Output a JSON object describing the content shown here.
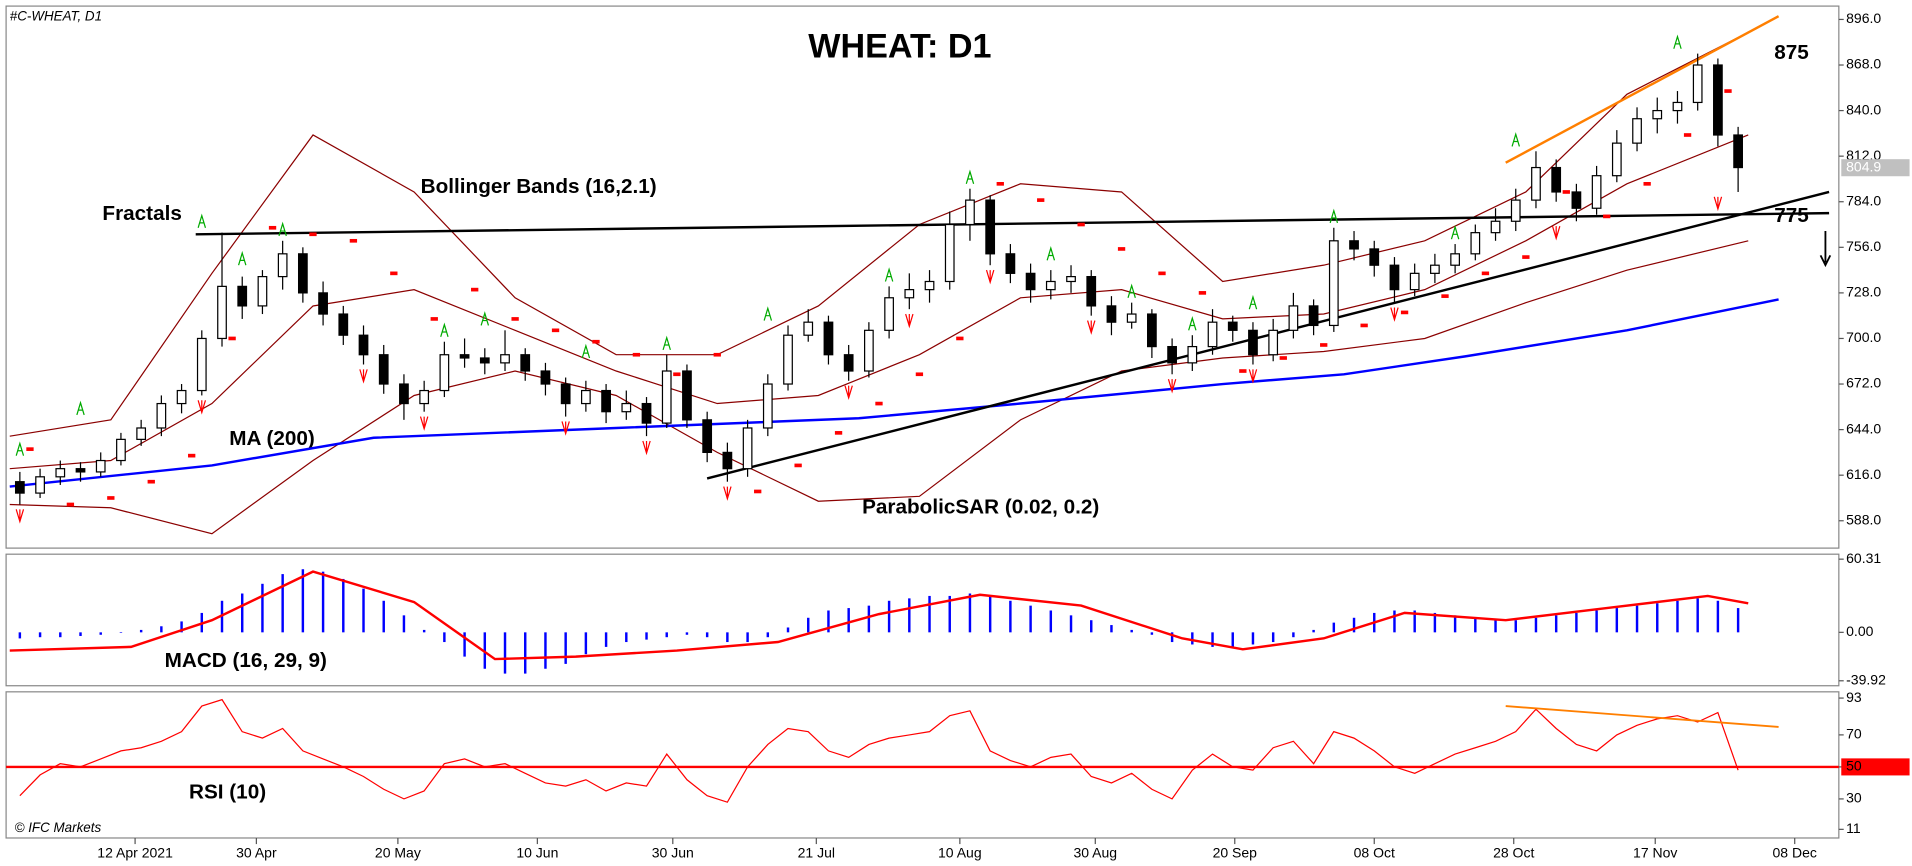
{
  "chart_data": {
    "type": "candlestick",
    "title": "WHEAT: D1",
    "symbol": "#C-WHEAT, D1",
    "watermark": "© IFC Markets",
    "xlim": [
      0,
      90
    ],
    "xticks": [
      {
        "value": 6.2,
        "label": "12 Apr 2021"
      },
      {
        "value": 12.2,
        "label": "30 Apr"
      },
      {
        "value": 19.2,
        "label": "20 May"
      },
      {
        "value": 26.1,
        "label": "10 Jun"
      },
      {
        "value": 32.8,
        "label": "30 Jun"
      },
      {
        "value": 39.9,
        "label": "21 Jul"
      },
      {
        "value": 47.0,
        "label": "10 Aug"
      },
      {
        "value": 53.7,
        "label": "30 Aug"
      },
      {
        "value": 60.6,
        "label": "20 Sep"
      },
      {
        "value": 67.5,
        "label": "08 Oct"
      },
      {
        "value": 74.4,
        "label": "28 Oct"
      },
      {
        "value": 81.4,
        "label": "17 Nov"
      },
      {
        "value": 88.3,
        "label": "08 Dec"
      }
    ],
    "ylim": [
      571.2,
      904.2
    ],
    "yticks": [
      {
        "value": 588,
        "label": "588.0"
      },
      {
        "value": 616,
        "label": "616.0"
      },
      {
        "value": 644,
        "label": "644.0"
      },
      {
        "value": 672,
        "label": "672.0"
      },
      {
        "value": 700,
        "label": "700.0"
      },
      {
        "value": 728,
        "label": "728.0"
      },
      {
        "value": 756,
        "label": "756.0"
      },
      {
        "value": 784,
        "label": "784.0"
      },
      {
        "value": 812,
        "label": "812.0"
      },
      {
        "value": 840,
        "label": "840.0"
      },
      {
        "value": 868,
        "label": "868.0"
      },
      {
        "value": 896,
        "label": "896.0"
      }
    ],
    "last_price": 804.9,
    "up_color": "#ffffff",
    "down_color": "#000000",
    "candles": [
      [
        612,
        618,
        598,
        605
      ],
      [
        605,
        620,
        602,
        615
      ],
      [
        615,
        625,
        610,
        620
      ],
      [
        620,
        624,
        612,
        618
      ],
      [
        618,
        630,
        615,
        625
      ],
      [
        625,
        642,
        622,
        638
      ],
      [
        638,
        650,
        634,
        645
      ],
      [
        645,
        665,
        640,
        660
      ],
      [
        660,
        672,
        654,
        668
      ],
      [
        668,
        705,
        665,
        700
      ],
      [
        700,
        765,
        695,
        732
      ],
      [
        732,
        738,
        712,
        720
      ],
      [
        720,
        742,
        715,
        738
      ],
      [
        738,
        760,
        730,
        752
      ],
      [
        752,
        756,
        722,
        728
      ],
      [
        728,
        735,
        708,
        715
      ],
      [
        715,
        720,
        696,
        702
      ],
      [
        702,
        708,
        684,
        690
      ],
      [
        690,
        696,
        666,
        672
      ],
      [
        672,
        678,
        650,
        660
      ],
      [
        660,
        674,
        655,
        668
      ],
      [
        668,
        698,
        664,
        690
      ],
      [
        690,
        700,
        682,
        688
      ],
      [
        688,
        694,
        678,
        685
      ],
      [
        685,
        705,
        680,
        690
      ],
      [
        690,
        694,
        674,
        680
      ],
      [
        680,
        685,
        665,
        672
      ],
      [
        672,
        676,
        652,
        660
      ],
      [
        660,
        674,
        655,
        668
      ],
      [
        668,
        672,
        648,
        655
      ],
      [
        655,
        668,
        650,
        660
      ],
      [
        660,
        664,
        640,
        648
      ],
      [
        648,
        690,
        645,
        680
      ],
      [
        680,
        684,
        645,
        650
      ],
      [
        650,
        655,
        624,
        630
      ],
      [
        630,
        636,
        612,
        620
      ],
      [
        620,
        650,
        615,
        645
      ],
      [
        645,
        678,
        640,
        672
      ],
      [
        672,
        708,
        668,
        702
      ],
      [
        702,
        718,
        698,
        710
      ],
      [
        710,
        714,
        684,
        690
      ],
      [
        690,
        696,
        674,
        680
      ],
      [
        680,
        710,
        676,
        705
      ],
      [
        705,
        732,
        700,
        725
      ],
      [
        725,
        740,
        718,
        730
      ],
      [
        730,
        742,
        722,
        735
      ],
      [
        735,
        778,
        730,
        770
      ],
      [
        770,
        792,
        760,
        785
      ],
      [
        785,
        788,
        745,
        752
      ],
      [
        752,
        758,
        734,
        740
      ],
      [
        740,
        746,
        722,
        730
      ],
      [
        730,
        742,
        724,
        735
      ],
      [
        735,
        745,
        728,
        738
      ],
      [
        738,
        742,
        714,
        720
      ],
      [
        720,
        726,
        702,
        710
      ],
      [
        710,
        722,
        706,
        715
      ],
      [
        715,
        718,
        688,
        695
      ],
      [
        695,
        700,
        678,
        685
      ],
      [
        685,
        702,
        680,
        695
      ],
      [
        695,
        718,
        690,
        710
      ],
      [
        710,
        714,
        698,
        705
      ],
      [
        705,
        710,
        684,
        690
      ],
      [
        690,
        712,
        686,
        705
      ],
      [
        705,
        728,
        700,
        720
      ],
      [
        720,
        724,
        702,
        708
      ],
      [
        708,
        768,
        704,
        760
      ],
      [
        760,
        766,
        748,
        755
      ],
      [
        755,
        760,
        738,
        745
      ],
      [
        745,
        750,
        722,
        730
      ],
      [
        730,
        746,
        726,
        740
      ],
      [
        740,
        752,
        734,
        745
      ],
      [
        745,
        758,
        740,
        752
      ],
      [
        752,
        770,
        748,
        765
      ],
      [
        765,
        780,
        760,
        772
      ],
      [
        772,
        792,
        766,
        785
      ],
      [
        785,
        815,
        780,
        805
      ],
      [
        805,
        810,
        784,
        790
      ],
      [
        790,
        795,
        772,
        780
      ],
      [
        780,
        806,
        776,
        800
      ],
      [
        800,
        828,
        796,
        820
      ],
      [
        820,
        842,
        815,
        835
      ],
      [
        835,
        848,
        826,
        840
      ],
      [
        840,
        852,
        832,
        845
      ],
      [
        845,
        875,
        840,
        868
      ],
      [
        868,
        872,
        818,
        825
      ],
      [
        825,
        830,
        790,
        805
      ]
    ],
    "ma": {
      "label": "MA (200)",
      "color": "#0000ff",
      "x": [
        0,
        10,
        18,
        30,
        42,
        50,
        60,
        66,
        72,
        80,
        87.5
      ],
      "values": [
        609,
        622,
        639,
        645,
        651,
        660,
        672,
        678,
        689,
        705,
        724
      ]
    },
    "bollinger": {
      "label": "Bollinger Bands (16,2.1)",
      "color": "#8b0000",
      "x": [
        0,
        5,
        10,
        15,
        20,
        25,
        30,
        35,
        40,
        45,
        50,
        55,
        60,
        65,
        70,
        75,
        80,
        86
      ],
      "upper": [
        640,
        650,
        740,
        825,
        790,
        725,
        690,
        690,
        720,
        770,
        795,
        790,
        735,
        745,
        760,
        790,
        850,
        888
      ],
      "middle": [
        620,
        625,
        660,
        720,
        730,
        705,
        680,
        660,
        665,
        690,
        725,
        730,
        712,
        715,
        730,
        760,
        795,
        825
      ],
      "lower": [
        598,
        596,
        580,
        625,
        665,
        680,
        665,
        630,
        600,
        603,
        650,
        680,
        688,
        692,
        700,
        722,
        742,
        760
      ]
    },
    "sar": {
      "label": "ParabolicSAR (0.02, 0.2)",
      "color": "#ff0000",
      "x": [
        1,
        3,
        5,
        7,
        9,
        11,
        13,
        15,
        17,
        19,
        21,
        23,
        25,
        27,
        29,
        31,
        33,
        35,
        37,
        39,
        41,
        43,
        45,
        47,
        49,
        51,
        53,
        55,
        57,
        59,
        61,
        63,
        65,
        67,
        69,
        71,
        73,
        75,
        77,
        79,
        81,
        83,
        85
      ],
      "values": [
        632,
        598,
        602,
        612,
        628,
        700,
        768,
        764,
        760,
        740,
        712,
        730,
        712,
        705,
        698,
        690,
        678,
        690,
        606,
        622,
        642,
        660,
        678,
        700,
        795,
        785,
        770,
        755,
        740,
        728,
        680,
        688,
        696,
        708,
        716,
        726,
        740,
        750,
        790,
        775,
        795,
        825,
        852
      ]
    },
    "fractals": {
      "label": "Fractals",
      "up_color": "#00aa00",
      "down_color": "#ff0000",
      "up": {
        "x": [
          0.5,
          3.5,
          9.5,
          11.5,
          13.5,
          21.5,
          23.5,
          28.5,
          32.5,
          37.5,
          43.5,
          47.5,
          51.5,
          55.5,
          58.5,
          61.5,
          65.5,
          71.5,
          74.5,
          82.5
        ],
        "values": [
          625,
          650,
          765,
          742,
          760,
          698,
          705,
          685,
          690,
          708,
          732,
          792,
          745,
          722,
          702,
          715,
          768,
          758,
          815,
          875
        ]
      },
      "down": {
        "x": [
          0.5,
          9.5,
          17.5,
          20.5,
          27.5,
          31.5,
          35.5,
          41.5,
          44.5,
          48.5,
          53.5,
          57.5,
          61.5,
          68.5,
          76.5,
          84.5
        ],
        "values": [
          598,
          665,
          684,
          655,
          652,
          640,
          612,
          674,
          718,
          745,
          714,
          678,
          684,
          722,
          772,
          790
        ]
      }
    },
    "trendlines": [
      {
        "color": "#000000",
        "x": [
          34.5,
          90
        ],
        "values": [
          614,
          790
        ]
      },
      {
        "color": "#000000",
        "x": [
          9.2,
          90
        ],
        "values": [
          764,
          777
        ]
      },
      {
        "color": "#ff7f00",
        "x": [
          74,
          87.5
        ],
        "values": [
          808,
          898
        ]
      }
    ],
    "targets": [
      875,
      775
    ],
    "macd": {
      "label": "MACD (16, 29, 9)",
      "ylim": [
        -44,
        64.4
      ],
      "yticks": [
        60.31,
        {
          "value": 0,
          "label": "0.00"
        },
        -39.92
      ],
      "hist_color": "#0000ff",
      "histogram": [
        -5,
        -4,
        -4,
        -3,
        -2,
        0,
        2,
        5,
        9,
        16,
        26,
        32,
        40,
        48,
        52,
        50,
        44,
        36,
        26,
        14,
        2,
        -8,
        -20,
        -30,
        -34,
        -34,
        -30,
        -26,
        -18,
        -12,
        -8,
        -6,
        -4,
        -2,
        -4,
        -8,
        -8,
        -4,
        4,
        12,
        18,
        20,
        22,
        26,
        28,
        30,
        30,
        32,
        30,
        26,
        22,
        18,
        14,
        10,
        6,
        2,
        -2,
        -8,
        -10,
        -12,
        -12,
        -10,
        -8,
        -4,
        2,
        8,
        12,
        16,
        18,
        18,
        16,
        14,
        12,
        10,
        10,
        12,
        14,
        16,
        18,
        20,
        22,
        24,
        26,
        28,
        26,
        20
      ],
      "signal": {
        "color": "#ff0000",
        "x": [
          0,
          6,
          10,
          15,
          20,
          24,
          28,
          33,
          38,
          43,
          48,
          53,
          58,
          61,
          65,
          69,
          74,
          79,
          84,
          86
        ],
        "values": [
          -15,
          -12,
          10,
          50,
          25,
          -22,
          -20,
          -15,
          -8,
          15,
          31,
          22,
          -5,
          -14,
          -5,
          16,
          10,
          20,
          30,
          24
        ]
      }
    },
    "rsi": {
      "label": "RSI (10)",
      "ylim": [
        5.6,
        96.9
      ],
      "yticks": [
        93,
        70,
        50,
        30,
        11
      ],
      "level": 50,
      "color": "#ff0000",
      "values": [
        32,
        45,
        52,
        50,
        55,
        60,
        62,
        66,
        72,
        88,
        92,
        72,
        68,
        74,
        60,
        55,
        50,
        44,
        36,
        30,
        35,
        52,
        55,
        50,
        52,
        46,
        40,
        38,
        42,
        35,
        40,
        38,
        58,
        42,
        32,
        28,
        50,
        64,
        74,
        72,
        60,
        56,
        64,
        68,
        70,
        72,
        82,
        85,
        60,
        54,
        50,
        56,
        58,
        44,
        40,
        46,
        36,
        30,
        48,
        58,
        50,
        48,
        62,
        66,
        52,
        72,
        68,
        60,
        50,
        46,
        52,
        58,
        62,
        66,
        72,
        86,
        74,
        64,
        60,
        70,
        76,
        80,
        82,
        78,
        84,
        48
      ],
      "trendline": {
        "color": "#ff7f00",
        "x": [
          74,
          87.5
        ],
        "values": [
          88,
          75
        ]
      }
    }
  }
}
